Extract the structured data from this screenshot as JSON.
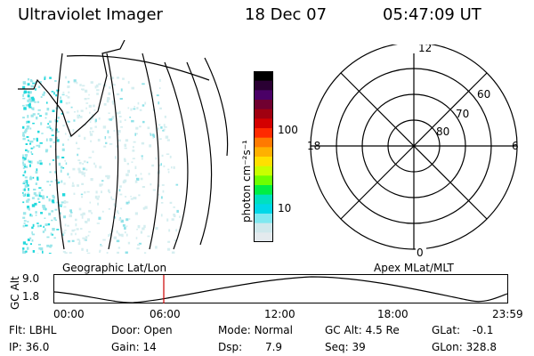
{
  "header": {
    "instrument": "Ultraviolet Imager",
    "date": "18 Dec 07",
    "time": "05:47:09 UT"
  },
  "colorbar": {
    "unit_label": "photon cm⁻²s⁻¹",
    "ticks": [
      "100",
      "10"
    ],
    "colors": [
      "#000000",
      "#2a0033",
      "#4a0066",
      "#700030",
      "#a00010",
      "#d40000",
      "#ff2a00",
      "#ff7a00",
      "#ffb000",
      "#ffe000",
      "#c8ff00",
      "#6dff00",
      "#00ee44",
      "#00e0c0",
      "#00d8e8",
      "#7fe8f0",
      "#cfe8ec",
      "#e4eaee"
    ]
  },
  "polar_plot": {
    "labels": {
      "top": "12",
      "bottom": "0",
      "left": "18",
      "right": "6"
    },
    "lat_labels": [
      "60",
      "70",
      "80"
    ]
  },
  "timeline": {
    "left_label": "Geographic Lat/Lon",
    "right_label": "Apex MLat/MLT",
    "y_axis_label": "GC Alt",
    "y_ticks": [
      "9.0",
      "1.8"
    ],
    "x_ticks": [
      "00:00",
      "06:00",
      "12:00",
      "18:00",
      "23:59"
    ],
    "marker_color": "#cc0000"
  },
  "status": {
    "flt": {
      "label": "Flt:",
      "value": "LBHL"
    },
    "ip": {
      "label": "IP:",
      "value": "36.0"
    },
    "door": {
      "label": "Door:",
      "value": "Open"
    },
    "gain": {
      "label": "Gain:",
      "value": "14"
    },
    "mode": {
      "label": "Mode:",
      "value": "Normal"
    },
    "dsp": {
      "label": "Dsp:",
      "value": "7.9"
    },
    "gcalt": {
      "label": "GC Alt:",
      "value": "4.5 Re"
    },
    "seq": {
      "label": "Seq:",
      "value": "39"
    },
    "glat": {
      "label": "GLat:",
      "value": "-0.1"
    },
    "glon": {
      "label": "GLon:",
      "value": "328.8"
    }
  }
}
